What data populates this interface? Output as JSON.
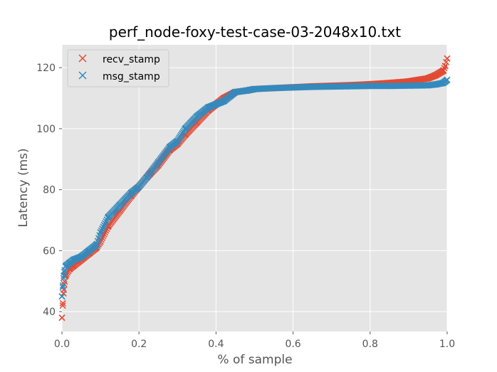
{
  "chart_data": {
    "type": "scatter",
    "title": "perf_node-foxy-test-case-03-2048x10.txt",
    "xlabel": "% of sample",
    "ylabel": "Latency (ms)",
    "xlim": [
      0.0,
      1.0
    ],
    "ylim": [
      33.5,
      127.5
    ],
    "xticks": [
      0.0,
      0.2,
      0.4,
      0.6,
      0.8,
      1.0
    ],
    "xtick_labels": [
      "0.0",
      "0.2",
      "0.4",
      "0.6",
      "0.8",
      "1.0"
    ],
    "yticks": [
      40,
      60,
      80,
      100,
      120
    ],
    "ytick_labels": [
      "40",
      "60",
      "80",
      "100",
      "120"
    ],
    "grid": true,
    "legend_position": "top-left",
    "marker": "x",
    "background": "#e5e5e5",
    "series": [
      {
        "name": "recv_stamp",
        "color": "#e24a33",
        "x": [
          0.0,
          0.002,
          0.004,
          0.006,
          0.01,
          0.02,
          0.03,
          0.05,
          0.07,
          0.09,
          0.1,
          0.12,
          0.15,
          0.18,
          0.2,
          0.22,
          0.25,
          0.28,
          0.3,
          0.32,
          0.35,
          0.38,
          0.4,
          0.42,
          0.45,
          0.48,
          0.5,
          0.55,
          0.6,
          0.65,
          0.7,
          0.75,
          0.8,
          0.85,
          0.9,
          0.95,
          0.97,
          0.99,
          0.995,
          1.0
        ],
        "y": [
          38,
          42,
          46,
          49,
          52,
          54,
          55,
          57,
          59,
          61,
          63,
          68,
          73,
          78,
          81,
          84,
          88,
          93,
          95,
          98,
          102,
          106,
          108,
          110,
          112,
          112.5,
          113,
          113.3,
          113.6,
          113.9,
          114.1,
          114.3,
          114.6,
          115,
          115.5,
          116.5,
          117.5,
          119,
          120.5,
          123
        ]
      },
      {
        "name": "msg_stamp",
        "color": "#348abd",
        "x": [
          0.0,
          0.002,
          0.004,
          0.006,
          0.01,
          0.02,
          0.03,
          0.05,
          0.07,
          0.09,
          0.1,
          0.12,
          0.15,
          0.18,
          0.2,
          0.22,
          0.25,
          0.28,
          0.3,
          0.32,
          0.35,
          0.38,
          0.4,
          0.42,
          0.45,
          0.48,
          0.5,
          0.55,
          0.6,
          0.65,
          0.7,
          0.75,
          0.8,
          0.85,
          0.9,
          0.95,
          0.97,
          0.99,
          0.995,
          1.0
        ],
        "y": [
          45,
          48,
          51,
          53,
          55,
          56,
          57,
          58,
          60,
          62,
          66,
          71,
          75,
          79,
          81,
          84,
          89,
          94,
          96,
          100,
          104,
          107,
          108,
          109,
          112,
          112.5,
          113,
          113.3,
          113.5,
          113.7,
          113.8,
          113.9,
          114,
          114,
          114.1,
          114.2,
          114.5,
          115,
          115.5,
          116
        ]
      }
    ]
  }
}
